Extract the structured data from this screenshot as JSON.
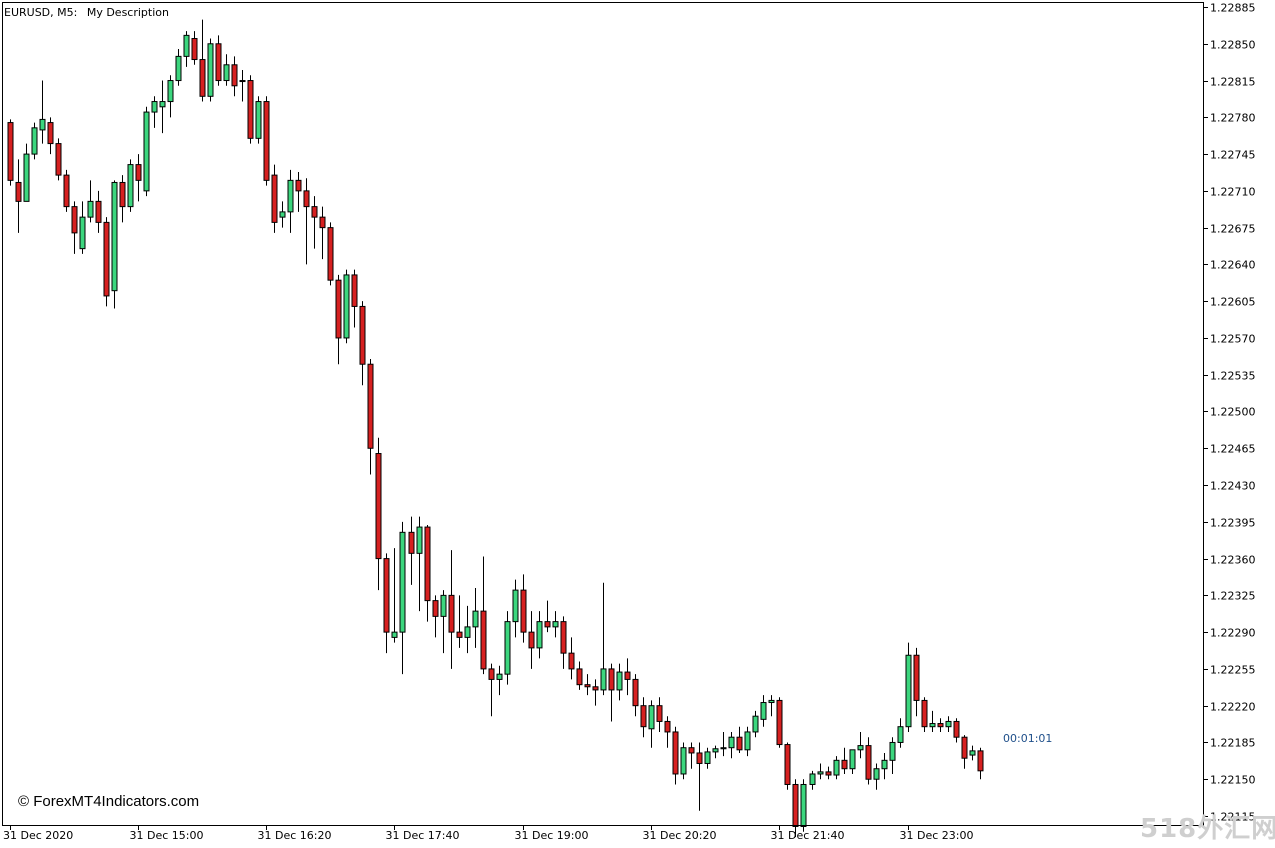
{
  "chart_header": {
    "symbol": "EURUSD, M5:",
    "description": "My Description"
  },
  "timer": "00:01:01",
  "copyright": "© ForexMT4Indicators.com",
  "watermark": "518外汇网",
  "colors": {
    "bull": "#3cd67e",
    "bear": "#d62020",
    "wick": "#000000",
    "frame": "#000000",
    "timer": "#1f4f8a",
    "background": "#ffffff"
  },
  "chart_data": {
    "type": "candlestick",
    "symbol": "EURUSD",
    "timeframe": "M5",
    "ylim": [
      1.22095,
      1.22892
    ],
    "y_ticks": [
      "1.22885",
      "1.22850",
      "1.22815",
      "1.22780",
      "1.22745",
      "1.22710",
      "1.22675",
      "1.22640",
      "1.22605",
      "1.22570",
      "1.22535",
      "1.22500",
      "1.22465",
      "1.22430",
      "1.22395",
      "1.22360",
      "1.22325",
      "1.22290",
      "1.22255",
      "1.22220",
      "1.22185",
      "1.22150",
      "1.22115"
    ],
    "x_ticks": [
      {
        "label": "31 Dec 2020",
        "bar": 0
      },
      {
        "label": "31 Dec 15:00",
        "bar": 16
      },
      {
        "label": "31 Dec 16:20",
        "bar": 32
      },
      {
        "label": "31 Dec 17:40",
        "bar": 48
      },
      {
        "label": "31 Dec 19:00",
        "bar": 64
      },
      {
        "label": "31 Dec 20:20",
        "bar": 80
      },
      {
        "label": "31 Dec 21:40",
        "bar": 96
      },
      {
        "label": "31 Dec 23:00",
        "bar": 112
      }
    ],
    "grid": false,
    "candles": [
      {
        "o": 1.22775,
        "h": 1.22778,
        "l": 1.22715,
        "c": 1.2272
      },
      {
        "o": 1.22718,
        "h": 1.2274,
        "l": 1.2267,
        "c": 1.227
      },
      {
        "o": 1.227,
        "h": 1.22755,
        "l": 1.227,
        "c": 1.22745
      },
      {
        "o": 1.22745,
        "h": 1.22775,
        "l": 1.2274,
        "c": 1.2277
      },
      {
        "o": 1.22768,
        "h": 1.22815,
        "l": 1.22755,
        "c": 1.22778
      },
      {
        "o": 1.22775,
        "h": 1.2278,
        "l": 1.22745,
        "c": 1.22755
      },
      {
        "o": 1.22755,
        "h": 1.2276,
        "l": 1.2272,
        "c": 1.22725
      },
      {
        "o": 1.22725,
        "h": 1.2273,
        "l": 1.2269,
        "c": 1.22695
      },
      {
        "o": 1.22695,
        "h": 1.227,
        "l": 1.2265,
        "c": 1.2267
      },
      {
        "o": 1.22655,
        "h": 1.227,
        "l": 1.2265,
        "c": 1.22685
      },
      {
        "o": 1.22685,
        "h": 1.2272,
        "l": 1.2268,
        "c": 1.227
      },
      {
        "o": 1.227,
        "h": 1.2271,
        "l": 1.2267,
        "c": 1.2268
      },
      {
        "o": 1.2268,
        "h": 1.22685,
        "l": 1.226,
        "c": 1.2261
      },
      {
        "o": 1.22615,
        "h": 1.2272,
        "l": 1.22598,
        "c": 1.22718
      },
      {
        "o": 1.22718,
        "h": 1.22725,
        "l": 1.2268,
        "c": 1.22695
      },
      {
        "o": 1.22695,
        "h": 1.2274,
        "l": 1.2269,
        "c": 1.22735
      },
      {
        "o": 1.22735,
        "h": 1.22745,
        "l": 1.227,
        "c": 1.2272
      },
      {
        "o": 1.2271,
        "h": 1.2279,
        "l": 1.22705,
        "c": 1.22785
      },
      {
        "o": 1.22785,
        "h": 1.228,
        "l": 1.2277,
        "c": 1.22795
      },
      {
        "o": 1.2279,
        "h": 1.22815,
        "l": 1.22765,
        "c": 1.22795
      },
      {
        "o": 1.22795,
        "h": 1.2282,
        "l": 1.2278,
        "c": 1.22815
      },
      {
        "o": 1.22815,
        "h": 1.22845,
        "l": 1.2281,
        "c": 1.22838
      },
      {
        "o": 1.22838,
        "h": 1.22862,
        "l": 1.22828,
        "c": 1.22858
      },
      {
        "o": 1.22855,
        "h": 1.22862,
        "l": 1.2283,
        "c": 1.22835
      },
      {
        "o": 1.22835,
        "h": 1.22873,
        "l": 1.22795,
        "c": 1.228
      },
      {
        "o": 1.228,
        "h": 1.22855,
        "l": 1.22795,
        "c": 1.2285
      },
      {
        "o": 1.2285,
        "h": 1.22858,
        "l": 1.2281,
        "c": 1.22815
      },
      {
        "o": 1.22815,
        "h": 1.2284,
        "l": 1.2281,
        "c": 1.2283
      },
      {
        "o": 1.2283,
        "h": 1.22838,
        "l": 1.228,
        "c": 1.2281
      },
      {
        "o": 1.22815,
        "h": 1.22825,
        "l": 1.22795,
        "c": 1.22815
      },
      {
        "o": 1.22815,
        "h": 1.2282,
        "l": 1.22755,
        "c": 1.2276
      },
      {
        "o": 1.2276,
        "h": 1.228,
        "l": 1.22755,
        "c": 1.22795
      },
      {
        "o": 1.22795,
        "h": 1.228,
        "l": 1.22715,
        "c": 1.2272
      },
      {
        "o": 1.22725,
        "h": 1.22735,
        "l": 1.2267,
        "c": 1.2268
      },
      {
        "o": 1.22685,
        "h": 1.227,
        "l": 1.22675,
        "c": 1.2269
      },
      {
        "o": 1.2269,
        "h": 1.2273,
        "l": 1.2267,
        "c": 1.2272
      },
      {
        "o": 1.2272,
        "h": 1.22728,
        "l": 1.2269,
        "c": 1.2271
      },
      {
        "o": 1.2271,
        "h": 1.22722,
        "l": 1.2264,
        "c": 1.22695
      },
      {
        "o": 1.22695,
        "h": 1.22705,
        "l": 1.22655,
        "c": 1.22685
      },
      {
        "o": 1.22685,
        "h": 1.22695,
        "l": 1.22645,
        "c": 1.22675
      },
      {
        "o": 1.22675,
        "h": 1.2268,
        "l": 1.2262,
        "c": 1.22625
      },
      {
        "o": 1.22625,
        "h": 1.2263,
        "l": 1.22545,
        "c": 1.2257
      },
      {
        "o": 1.2257,
        "h": 1.22635,
        "l": 1.22565,
        "c": 1.2263
      },
      {
        "o": 1.2263,
        "h": 1.22635,
        "l": 1.2258,
        "c": 1.226
      },
      {
        "o": 1.226,
        "h": 1.22605,
        "l": 1.22525,
        "c": 1.22545
      },
      {
        "o": 1.22545,
        "h": 1.2255,
        "l": 1.2244,
        "c": 1.22465
      },
      {
        "o": 1.2246,
        "h": 1.22475,
        "l": 1.2233,
        "c": 1.2236
      },
      {
        "o": 1.2236,
        "h": 1.22365,
        "l": 1.2227,
        "c": 1.2229
      },
      {
        "o": 1.22285,
        "h": 1.2237,
        "l": 1.2228,
        "c": 1.2229
      },
      {
        "o": 1.2229,
        "h": 1.22395,
        "l": 1.2225,
        "c": 1.22385
      },
      {
        "o": 1.22385,
        "h": 1.224,
        "l": 1.22335,
        "c": 1.22365
      },
      {
        "o": 1.22365,
        "h": 1.224,
        "l": 1.2231,
        "c": 1.2239
      },
      {
        "o": 1.2239,
        "h": 1.22392,
        "l": 1.223,
        "c": 1.2232
      },
      {
        "o": 1.2232,
        "h": 1.22325,
        "l": 1.22285,
        "c": 1.22305
      },
      {
        "o": 1.22305,
        "h": 1.2233,
        "l": 1.2227,
        "c": 1.22325
      },
      {
        "o": 1.22325,
        "h": 1.22368,
        "l": 1.22255,
        "c": 1.2229
      },
      {
        "o": 1.2229,
        "h": 1.22325,
        "l": 1.22275,
        "c": 1.22285
      },
      {
        "o": 1.22285,
        "h": 1.22315,
        "l": 1.2227,
        "c": 1.22295
      },
      {
        "o": 1.22295,
        "h": 1.22332,
        "l": 1.22275,
        "c": 1.2231
      },
      {
        "o": 1.2231,
        "h": 1.22362,
        "l": 1.2225,
        "c": 1.22255
      },
      {
        "o": 1.22255,
        "h": 1.2226,
        "l": 1.2221,
        "c": 1.22245
      },
      {
        "o": 1.22245,
        "h": 1.22258,
        "l": 1.2223,
        "c": 1.2225
      },
      {
        "o": 1.2225,
        "h": 1.2231,
        "l": 1.2224,
        "c": 1.223
      },
      {
        "o": 1.223,
        "h": 1.2234,
        "l": 1.22285,
        "c": 1.2233
      },
      {
        "o": 1.2233,
        "h": 1.22345,
        "l": 1.2228,
        "c": 1.2229
      },
      {
        "o": 1.2229,
        "h": 1.2231,
        "l": 1.22255,
        "c": 1.22275
      },
      {
        "o": 1.22275,
        "h": 1.2231,
        "l": 1.22265,
        "c": 1.223
      },
      {
        "o": 1.223,
        "h": 1.2232,
        "l": 1.2229,
        "c": 1.22295
      },
      {
        "o": 1.22295,
        "h": 1.2231,
        "l": 1.22285,
        "c": 1.223
      },
      {
        "o": 1.223,
        "h": 1.22305,
        "l": 1.22255,
        "c": 1.2227
      },
      {
        "o": 1.2227,
        "h": 1.22285,
        "l": 1.22245,
        "c": 1.22255
      },
      {
        "o": 1.22255,
        "h": 1.22262,
        "l": 1.22235,
        "c": 1.2224
      },
      {
        "o": 1.2224,
        "h": 1.2225,
        "l": 1.2223,
        "c": 1.22238
      },
      {
        "o": 1.22238,
        "h": 1.22245,
        "l": 1.2222,
        "c": 1.22235
      },
      {
        "o": 1.22235,
        "h": 1.22337,
        "l": 1.2223,
        "c": 1.22255
      },
      {
        "o": 1.22255,
        "h": 1.2226,
        "l": 1.22205,
        "c": 1.22235
      },
      {
        "o": 1.22235,
        "h": 1.2226,
        "l": 1.22225,
        "c": 1.22252
      },
      {
        "o": 1.22252,
        "h": 1.22265,
        "l": 1.2223,
        "c": 1.22245
      },
      {
        "o": 1.22245,
        "h": 1.2225,
        "l": 1.2221,
        "c": 1.2222
      },
      {
        "o": 1.2222,
        "h": 1.22228,
        "l": 1.2219,
        "c": 1.222
      },
      {
        "o": 1.22198,
        "h": 1.22225,
        "l": 1.2218,
        "c": 1.2222
      },
      {
        "o": 1.2222,
        "h": 1.22228,
        "l": 1.22195,
        "c": 1.22205
      },
      {
        "o": 1.22205,
        "h": 1.2221,
        "l": 1.2218,
        "c": 1.22195
      },
      {
        "o": 1.22195,
        "h": 1.222,
        "l": 1.22145,
        "c": 1.22155
      },
      {
        "o": 1.22155,
        "h": 1.22185,
        "l": 1.2215,
        "c": 1.2218
      },
      {
        "o": 1.2218,
        "h": 1.22185,
        "l": 1.2216,
        "c": 1.22175
      },
      {
        "o": 1.22175,
        "h": 1.22185,
        "l": 1.2212,
        "c": 1.22165
      },
      {
        "o": 1.22165,
        "h": 1.2218,
        "l": 1.2216,
        "c": 1.22176
      },
      {
        "o": 1.22176,
        "h": 1.22182,
        "l": 1.2217,
        "c": 1.22179
      },
      {
        "o": 1.22179,
        "h": 1.22195,
        "l": 1.22172,
        "c": 1.2218
      },
      {
        "o": 1.2218,
        "h": 1.22195,
        "l": 1.2217,
        "c": 1.2219
      },
      {
        "o": 1.2219,
        "h": 1.222,
        "l": 1.22175,
        "c": 1.22178
      },
      {
        "o": 1.22178,
        "h": 1.222,
        "l": 1.22172,
        "c": 1.22195
      },
      {
        "o": 1.22195,
        "h": 1.22215,
        "l": 1.2219,
        "c": 1.2221
      },
      {
        "o": 1.22207,
        "h": 1.2223,
        "l": 1.222,
        "c": 1.22223
      },
      {
        "o": 1.22223,
        "h": 1.2223,
        "l": 1.2221,
        "c": 1.22225
      },
      {
        "o": 1.22225,
        "h": 1.22228,
        "l": 1.2218,
        "c": 1.22183
      },
      {
        "o": 1.22183,
        "h": 1.22185,
        "l": 1.2214,
        "c": 1.22145
      },
      {
        "o": 1.22145,
        "h": 1.2215,
        "l": 1.22095,
        "c": 1.22105
      },
      {
        "o": 1.22105,
        "h": 1.2215,
        "l": 1.221,
        "c": 1.22145
      },
      {
        "o": 1.22145,
        "h": 1.22158,
        "l": 1.2214,
        "c": 1.22155
      },
      {
        "o": 1.22155,
        "h": 1.22165,
        "l": 1.2215,
        "c": 1.22157
      },
      {
        "o": 1.22157,
        "h": 1.22162,
        "l": 1.2215,
        "c": 1.22154
      },
      {
        "o": 1.22154,
        "h": 1.22172,
        "l": 1.2215,
        "c": 1.22168
      },
      {
        "o": 1.22168,
        "h": 1.2218,
        "l": 1.22155,
        "c": 1.2216
      },
      {
        "o": 1.2216,
        "h": 1.22178,
        "l": 1.22155,
        "c": 1.22178
      },
      {
        "o": 1.22178,
        "h": 1.22195,
        "l": 1.2217,
        "c": 1.22182
      },
      {
        "o": 1.22182,
        "h": 1.2219,
        "l": 1.22145,
        "c": 1.2215
      },
      {
        "o": 1.2215,
        "h": 1.22165,
        "l": 1.2214,
        "c": 1.2216
      },
      {
        "o": 1.2216,
        "h": 1.22175,
        "l": 1.2215,
        "c": 1.22168
      },
      {
        "o": 1.22168,
        "h": 1.2219,
        "l": 1.22155,
        "c": 1.22185
      },
      {
        "o": 1.22185,
        "h": 1.22208,
        "l": 1.2218,
        "c": 1.222
      },
      {
        "o": 1.222,
        "h": 1.2228,
        "l": 1.22195,
        "c": 1.22268
      },
      {
        "o": 1.22268,
        "h": 1.22275,
        "l": 1.2221,
        "c": 1.22225
      },
      {
        "o": 1.22225,
        "h": 1.22228,
        "l": 1.22195,
        "c": 1.222
      },
      {
        "o": 1.222,
        "h": 1.22215,
        "l": 1.22195,
        "c": 1.22203
      },
      {
        "o": 1.22203,
        "h": 1.22208,
        "l": 1.22195,
        "c": 1.222
      },
      {
        "o": 1.222,
        "h": 1.2221,
        "l": 1.22195,
        "c": 1.22205
      },
      {
        "o": 1.22205,
        "h": 1.22208,
        "l": 1.22185,
        "c": 1.2219
      },
      {
        "o": 1.2219,
        "h": 1.22192,
        "l": 1.2216,
        "c": 1.2217
      },
      {
        "o": 1.22173,
        "h": 1.22182,
        "l": 1.22168,
        "c": 1.22177
      },
      {
        "o": 1.22177,
        "h": 1.2218,
        "l": 1.2215,
        "c": 1.22158
      }
    ]
  }
}
